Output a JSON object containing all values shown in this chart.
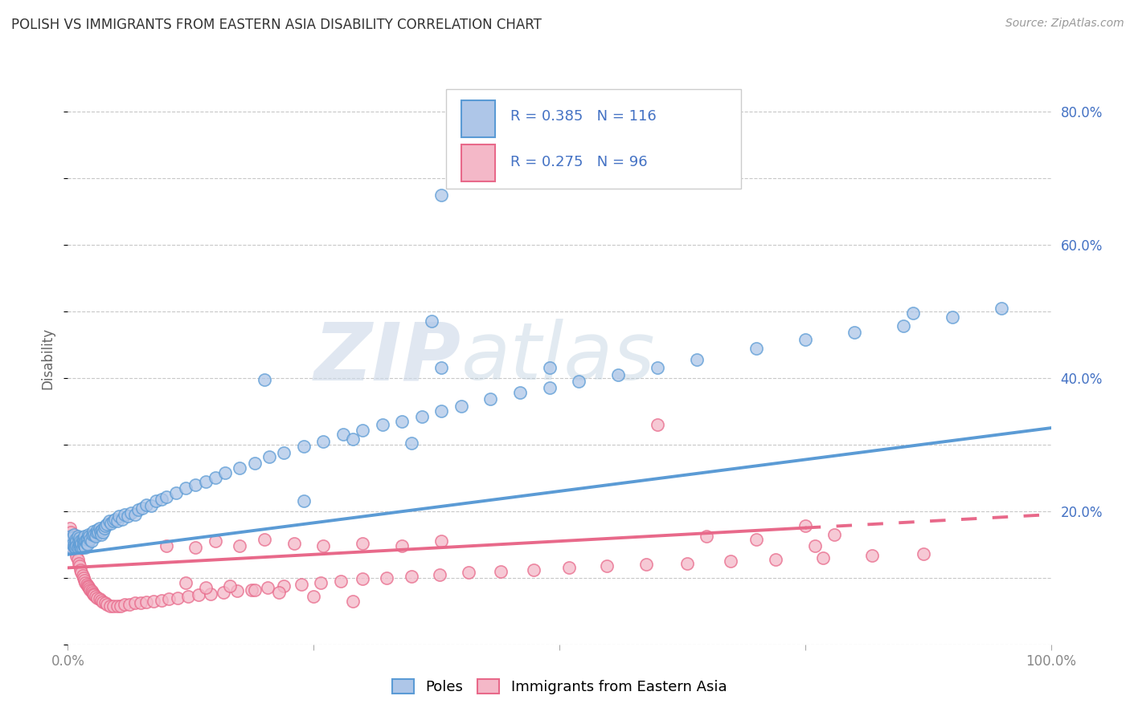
{
  "title": "POLISH VS IMMIGRANTS FROM EASTERN ASIA DISABILITY CORRELATION CHART",
  "source": "Source: ZipAtlas.com",
  "ylabel": "Disability",
  "background_color": "#ffffff",
  "grid_color": "#c8c8c8",
  "watermark_zip": "ZIP",
  "watermark_atlas": "atlas",
  "poles_color": "#5b9bd5",
  "poles_color_fill": "#aec6e8",
  "eastern_color": "#e8698a",
  "eastern_color_fill": "#f4b8c8",
  "blue_text": "#4472c4",
  "R_poles": 0.385,
  "N_poles": 116,
  "R_eastern": 0.275,
  "N_eastern": 96,
  "x_min": 0.0,
  "x_max": 1.0,
  "y_min": 0.0,
  "y_max": 0.86,
  "y_ticks": [
    0.0,
    0.2,
    0.4,
    0.6,
    0.8
  ],
  "y_tick_labels": [
    "",
    "20.0%",
    "40.0%",
    "60.0%",
    "80.0%"
  ],
  "x_ticks": [
    0.0,
    0.25,
    0.5,
    0.75,
    1.0
  ],
  "x_tick_labels": [
    "0.0%",
    "",
    "",
    "",
    "100.0%"
  ],
  "legend_labels": [
    "Poles",
    "Immigrants from Eastern Asia"
  ],
  "poles_line_x0": 0.0,
  "poles_line_y0": 0.135,
  "poles_line_x1": 1.0,
  "poles_line_y1": 0.325,
  "eastern_line_x0": 0.0,
  "eastern_line_y0": 0.115,
  "eastern_line_x1": 0.75,
  "eastern_line_y1": 0.175,
  "eastern_line_dash_x1": 1.0,
  "eastern_line_dash_y1": 0.195,
  "poles_scatter_x": [
    0.002,
    0.003,
    0.004,
    0.005,
    0.005,
    0.006,
    0.006,
    0.007,
    0.007,
    0.008,
    0.008,
    0.009,
    0.009,
    0.01,
    0.01,
    0.011,
    0.011,
    0.012,
    0.012,
    0.013,
    0.013,
    0.014,
    0.014,
    0.015,
    0.015,
    0.016,
    0.016,
    0.017,
    0.017,
    0.018,
    0.018,
    0.019,
    0.019,
    0.02,
    0.02,
    0.021,
    0.022,
    0.023,
    0.024,
    0.025,
    0.026,
    0.027,
    0.028,
    0.029,
    0.03,
    0.031,
    0.032,
    0.033,
    0.034,
    0.035,
    0.036,
    0.037,
    0.038,
    0.04,
    0.042,
    0.044,
    0.046,
    0.048,
    0.05,
    0.052,
    0.055,
    0.058,
    0.061,
    0.064,
    0.068,
    0.072,
    0.076,
    0.08,
    0.085,
    0.09,
    0.095,
    0.1,
    0.11,
    0.12,
    0.13,
    0.14,
    0.15,
    0.16,
    0.175,
    0.19,
    0.205,
    0.22,
    0.24,
    0.26,
    0.28,
    0.3,
    0.32,
    0.34,
    0.36,
    0.38,
    0.4,
    0.43,
    0.46,
    0.49,
    0.52,
    0.56,
    0.6,
    0.64,
    0.7,
    0.75,
    0.8,
    0.85,
    0.9,
    0.95,
    0.38,
    0.37,
    0.49,
    0.86,
    0.38,
    0.35,
    0.29,
    0.24,
    0.2
  ],
  "poles_scatter_y": [
    0.155,
    0.162,
    0.145,
    0.16,
    0.15,
    0.148,
    0.165,
    0.152,
    0.145,
    0.158,
    0.145,
    0.155,
    0.148,
    0.162,
    0.145,
    0.148,
    0.155,
    0.15,
    0.16,
    0.148,
    0.155,
    0.145,
    0.152,
    0.158,
    0.145,
    0.155,
    0.15,
    0.148,
    0.162,
    0.155,
    0.145,
    0.152,
    0.158,
    0.16,
    0.15,
    0.165,
    0.162,
    0.158,
    0.155,
    0.165,
    0.17,
    0.165,
    0.162,
    0.168,
    0.172,
    0.168,
    0.175,
    0.17,
    0.165,
    0.172,
    0.168,
    0.175,
    0.178,
    0.18,
    0.185,
    0.182,
    0.185,
    0.188,
    0.185,
    0.192,
    0.188,
    0.195,
    0.192,
    0.198,
    0.195,
    0.202,
    0.205,
    0.21,
    0.208,
    0.215,
    0.218,
    0.222,
    0.228,
    0.235,
    0.24,
    0.245,
    0.25,
    0.258,
    0.265,
    0.272,
    0.282,
    0.288,
    0.298,
    0.305,
    0.315,
    0.322,
    0.33,
    0.335,
    0.342,
    0.35,
    0.358,
    0.368,
    0.378,
    0.385,
    0.395,
    0.405,
    0.415,
    0.428,
    0.445,
    0.458,
    0.468,
    0.478,
    0.492,
    0.505,
    0.675,
    0.485,
    0.415,
    0.498,
    0.415,
    0.302,
    0.308,
    0.215,
    0.398
  ],
  "eastern_scatter_x": [
    0.002,
    0.003,
    0.004,
    0.005,
    0.006,
    0.007,
    0.008,
    0.009,
    0.01,
    0.011,
    0.012,
    0.013,
    0.014,
    0.015,
    0.016,
    0.017,
    0.018,
    0.019,
    0.02,
    0.021,
    0.022,
    0.023,
    0.024,
    0.025,
    0.026,
    0.027,
    0.028,
    0.03,
    0.032,
    0.034,
    0.036,
    0.038,
    0.04,
    0.043,
    0.046,
    0.05,
    0.054,
    0.058,
    0.063,
    0.068,
    0.074,
    0.08,
    0.087,
    0.095,
    0.103,
    0.112,
    0.122,
    0.133,
    0.145,
    0.158,
    0.172,
    0.187,
    0.203,
    0.22,
    0.238,
    0.257,
    0.278,
    0.3,
    0.324,
    0.35,
    0.378,
    0.408,
    0.44,
    0.474,
    0.51,
    0.548,
    0.588,
    0.63,
    0.674,
    0.72,
    0.768,
    0.818,
    0.87,
    0.1,
    0.13,
    0.15,
    0.175,
    0.2,
    0.23,
    0.26,
    0.3,
    0.34,
    0.38,
    0.12,
    0.14,
    0.165,
    0.19,
    0.215,
    0.25,
    0.29,
    0.75,
    0.76,
    0.78,
    0.7,
    0.65,
    0.6
  ],
  "eastern_scatter_y": [
    0.175,
    0.168,
    0.16,
    0.155,
    0.148,
    0.142,
    0.138,
    0.132,
    0.128,
    0.122,
    0.118,
    0.112,
    0.108,
    0.104,
    0.1,
    0.096,
    0.092,
    0.09,
    0.088,
    0.086,
    0.084,
    0.082,
    0.08,
    0.078,
    0.076,
    0.074,
    0.072,
    0.07,
    0.068,
    0.066,
    0.064,
    0.062,
    0.06,
    0.058,
    0.058,
    0.058,
    0.058,
    0.06,
    0.06,
    0.062,
    0.062,
    0.064,
    0.065,
    0.066,
    0.068,
    0.07,
    0.072,
    0.074,
    0.076,
    0.078,
    0.08,
    0.082,
    0.085,
    0.088,
    0.09,
    0.092,
    0.095,
    0.098,
    0.1,
    0.102,
    0.105,
    0.108,
    0.11,
    0.112,
    0.115,
    0.118,
    0.12,
    0.122,
    0.125,
    0.128,
    0.13,
    0.133,
    0.136,
    0.148,
    0.145,
    0.155,
    0.148,
    0.158,
    0.152,
    0.148,
    0.152,
    0.148,
    0.155,
    0.092,
    0.085,
    0.088,
    0.082,
    0.078,
    0.072,
    0.065,
    0.178,
    0.148,
    0.165,
    0.158,
    0.162,
    0.33
  ]
}
